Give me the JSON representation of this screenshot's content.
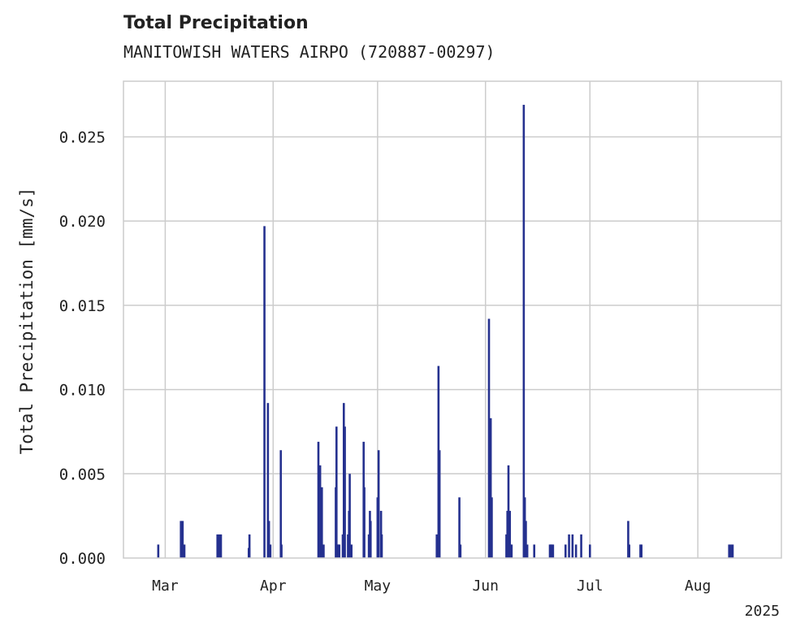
{
  "chart_data": {
    "type": "bar",
    "title": "Total Precipitation",
    "subtitle": "MANITOWISH WATERS AIRPO (720887-00297)",
    "xlabel": "",
    "ylabel": "Total Precipitation [mm/s]",
    "ylim": [
      0,
      0.0283
    ],
    "x_range_days": [
      -2,
      187
    ],
    "year_label": "2025",
    "grid": true,
    "color": "#25318f",
    "yticks": [
      {
        "value": 0.0,
        "label": "0.000"
      },
      {
        "value": 0.005,
        "label": "0.005"
      },
      {
        "value": 0.01,
        "label": "0.010"
      },
      {
        "value": 0.015,
        "label": "0.015"
      },
      {
        "value": 0.02,
        "label": "0.020"
      },
      {
        "value": 0.025,
        "label": "0.025"
      }
    ],
    "xticks": [
      {
        "day": 10,
        "label": "Mar"
      },
      {
        "day": 41,
        "label": "Apr"
      },
      {
        "day": 71,
        "label": "May"
      },
      {
        "day": 102,
        "label": "Jun"
      },
      {
        "day": 132,
        "label": "Jul"
      },
      {
        "day": 163,
        "label": "Aug"
      }
    ],
    "series": [
      {
        "name": "Total Precipitation",
        "x": [
          8,
          14.5,
          15,
          15.5,
          25,
          25.5,
          26,
          34,
          34.2,
          38.5,
          39.5,
          39.8,
          40.2,
          43.2,
          43.4,
          54,
          54.5,
          55,
          55.5,
          59,
          59.2,
          59.5,
          59.8,
          60,
          61,
          61.3,
          61.6,
          62.5,
          62.8,
          63,
          63.5,
          67,
          67.2,
          68.5,
          68.8,
          69,
          71,
          71.3,
          72,
          72.2,
          88,
          88.5,
          88.8,
          94.5,
          94.8,
          103,
          103.3,
          103.5,
          103.8,
          108,
          108.3,
          108.6,
          109,
          109.2,
          109.5,
          113,
          113.3,
          113.6,
          114,
          116,
          120.5,
          120.8,
          121,
          121.4,
          125,
          126,
          127,
          128,
          129.5,
          132,
          143,
          143.3,
          146.5,
          146.8,
          172,
          172.5,
          173
        ],
        "values": [
          0.0008,
          0.0022,
          0.0022,
          0.0008,
          0.0014,
          0.0014,
          0.0014,
          0.0006,
          0.0014,
          0.0197,
          0.0092,
          0.0022,
          0.0008,
          0.0064,
          0.0008,
          0.0069,
          0.0055,
          0.0042,
          0.0008,
          0.0042,
          0.0078,
          0.0008,
          0.0008,
          0.0008,
          0.0014,
          0.0092,
          0.0078,
          0.0014,
          0.0028,
          0.005,
          0.0008,
          0.0069,
          0.0042,
          0.0014,
          0.0028,
          0.0022,
          0.0036,
          0.0064,
          0.0028,
          0.0014,
          0.0014,
          0.0114,
          0.0064,
          0.0036,
          0.0008,
          0.0142,
          0.005,
          0.0083,
          0.0036,
          0.0014,
          0.0028,
          0.0055,
          0.0028,
          0.0008,
          0.0008,
          0.0269,
          0.0036,
          0.0022,
          0.0008,
          0.0008,
          0.0008,
          0.0008,
          0.0008,
          0.0008,
          0.0008,
          0.0014,
          0.0014,
          0.0008,
          0.0014,
          0.0008,
          0.0022,
          0.0008,
          0.0008,
          0.0008,
          0.0008,
          0.0008,
          0.0008
        ]
      }
    ]
  }
}
